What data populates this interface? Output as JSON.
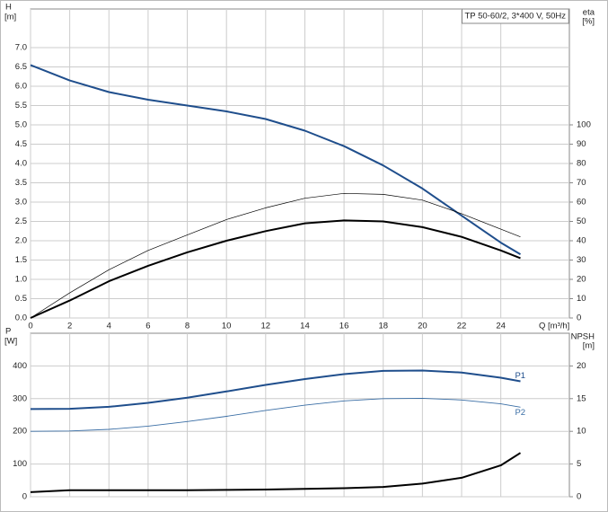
{
  "chart_data": [
    {
      "type": "line",
      "annotation": "TP 50-60/2, 3*400 V, 50Hz",
      "ylabel": "H",
      "ylabel_unit": "[m]",
      "y2label": "eta",
      "y2label_unit": "[%]",
      "xlabel": "Q [m³/h]",
      "x": [
        0,
        2,
        4,
        6,
        8,
        10,
        12,
        14,
        16,
        18,
        20,
        22,
        24,
        25
      ],
      "xlim": [
        0,
        27.5
      ],
      "xticks": [
        0,
        2,
        4,
        6,
        8,
        10,
        12,
        14,
        16,
        18,
        20,
        22,
        24
      ],
      "ylim": [
        0,
        8
      ],
      "yticks": [
        {
          "value": 0,
          "label": "0.0"
        },
        0.5,
        {
          "value": 1,
          "label": "1.0"
        },
        1.5,
        {
          "value": 2,
          "label": "2.0"
        },
        2.5,
        {
          "value": 3,
          "label": "3.0"
        },
        3.5,
        {
          "value": 4,
          "label": "4.0"
        },
        4.5,
        {
          "value": 5,
          "label": "5.0"
        },
        5.5,
        {
          "value": 6,
          "label": "6.0"
        },
        6.5,
        {
          "value": 7,
          "label": "7.0"
        }
      ],
      "y2lim": [
        0,
        160
      ],
      "y2ticks": [
        0,
        10,
        20,
        30,
        40,
        50,
        60,
        70,
        80,
        90,
        100
      ],
      "grid": true,
      "series": [
        {
          "color": "#1f4e8c",
          "linewidth": 2,
          "values": [
            6.55,
            6.15,
            5.85,
            5.65,
            5.5,
            5.35,
            5.15,
            4.85,
            4.45,
            3.95,
            3.35,
            2.65,
            1.95,
            1.65
          ]
        },
        {
          "color": "#000000",
          "linewidth": 2,
          "axis": "y2",
          "values": [
            0,
            9,
            19,
            27,
            34,
            40,
            45,
            49,
            50.5,
            50,
            47,
            42,
            35,
            31
          ]
        },
        {
          "color": "#000000",
          "linewidth": 0.7,
          "axis": "y2",
          "values": [
            0,
            13,
            25,
            35,
            43,
            51,
            57,
            62,
            64.5,
            64,
            61,
            54,
            46,
            42
          ]
        }
      ]
    },
    {
      "type": "line",
      "ylabel": "P",
      "ylabel_unit": "[W]",
      "y2label": "NPSH",
      "y2label_unit": "[m]",
      "x": [
        0,
        2,
        4,
        6,
        8,
        10,
        12,
        14,
        16,
        18,
        20,
        22,
        24,
        25
      ],
      "xlim": [
        0,
        27.5
      ],
      "xticks": [
        0,
        2,
        4,
        6,
        8,
        10,
        12,
        14,
        16,
        18,
        20,
        22,
        24
      ],
      "ylim": [
        0,
        500
      ],
      "yticks": [
        0,
        100,
        200,
        300,
        400
      ],
      "y2lim": [
        0,
        25
      ],
      "y2ticks": [
        0,
        5,
        10,
        15,
        20
      ],
      "grid": true,
      "series": [
        {
          "name": "P1",
          "color": "#1f4e8c",
          "linewidth": 2,
          "values": [
            268,
            269,
            275,
            287,
            303,
            322,
            342,
            360,
            375,
            385,
            386,
            380,
            364,
            353
          ]
        },
        {
          "name": "P2",
          "color": "#3a6ea5",
          "linewidth": 0.9,
          "values": [
            200,
            201,
            206,
            216,
            230,
            246,
            264,
            280,
            293,
            300,
            301,
            296,
            284,
            274
          ]
        },
        {
          "color": "#000000",
          "linewidth": 2,
          "axis": "y2",
          "values": [
            0.7,
            1.0,
            1.0,
            1.0,
            1.0,
            1.05,
            1.1,
            1.2,
            1.3,
            1.5,
            2.0,
            2.9,
            4.8,
            6.7
          ]
        }
      ]
    }
  ]
}
